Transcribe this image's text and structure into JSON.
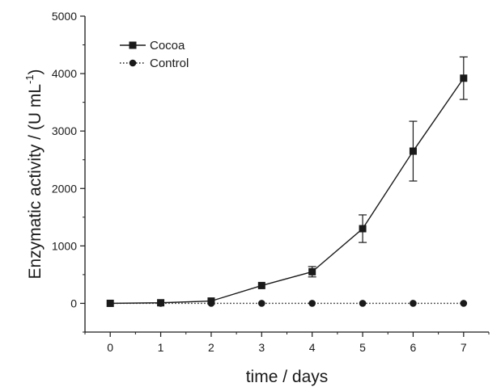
{
  "chart_data": {
    "type": "line",
    "title": "",
    "xlabel": "time / days",
    "ylabel_main": "Enzymatic activity / (U mL",
    "ylabel_sup": "-1",
    "ylabel_close": ")",
    "xlim": [
      -0.5,
      7.5
    ],
    "ylim": [
      -500,
      5000
    ],
    "x_ticks": [
      0,
      1,
      2,
      3,
      4,
      5,
      6,
      7
    ],
    "y_ticks": [
      0,
      1000,
      2000,
      3000,
      4000,
      5000
    ],
    "y_minor_ticks": [
      -500,
      500,
      1500,
      2500,
      3500,
      4500
    ],
    "grid": false,
    "legend_position": "top-left",
    "x": [
      0,
      1,
      2,
      3,
      4,
      5,
      6,
      7
    ],
    "series": [
      {
        "name": "Cocoa",
        "marker": "square",
        "line": "solid",
        "values": [
          0,
          10,
          40,
          310,
          550,
          1300,
          2650,
          3920
        ],
        "errors": [
          0,
          0,
          0,
          0,
          90,
          240,
          520,
          370
        ]
      },
      {
        "name": "Control",
        "marker": "circle",
        "line": "dotted",
        "values": [
          0,
          0,
          0,
          0,
          0,
          0,
          0,
          0
        ],
        "errors": [
          0,
          0,
          0,
          0,
          0,
          0,
          0,
          0
        ]
      }
    ]
  }
}
